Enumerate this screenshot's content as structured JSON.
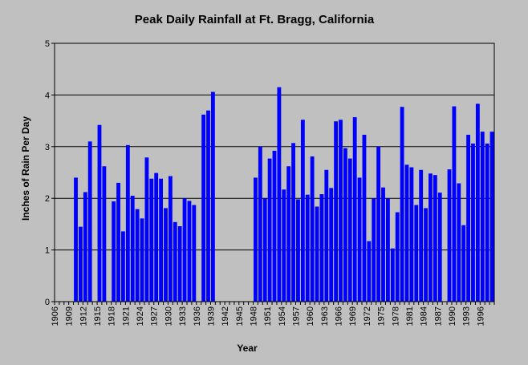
{
  "chart_data": {
    "type": "bar",
    "title": "Peak Daily Rainfall at Ft. Bragg, California",
    "xlabel": "Year",
    "ylabel": "Inches of Rain Per Day",
    "ylim": [
      0,
      5
    ],
    "yticks": [
      "0",
      "1",
      "2",
      "3",
      "4",
      "5"
    ],
    "xlim": [
      1906,
      1999
    ],
    "xticks": [
      "1906",
      "1909",
      "1912",
      "1915",
      "1918",
      "1921",
      "1924",
      "1927",
      "1930",
      "1933",
      "1936",
      "1939",
      "1942",
      "1945",
      "1948",
      "1951",
      "1954",
      "1957",
      "1960",
      "1963",
      "1966",
      "1969",
      "1972",
      "1975",
      "1978",
      "1981",
      "1984",
      "1987",
      "1990",
      "1993",
      "1996"
    ],
    "grid": "horizontal",
    "bar_color": "#0000ff",
    "background": "#ffffff",
    "x": [
      1910,
      1911,
      1912,
      1913,
      1914,
      1915,
      1916,
      1917,
      1918,
      1919,
      1920,
      1921,
      1922,
      1923,
      1924,
      1925,
      1926,
      1927,
      1928,
      1929,
      1930,
      1931,
      1932,
      1933,
      1934,
      1935,
      1936,
      1937,
      1938,
      1939,
      1940,
      1941,
      1942,
      1943,
      1944,
      1945,
      1946,
      1947,
      1948,
      1949,
      1950,
      1951,
      1952,
      1953,
      1954,
      1955,
      1956,
      1957,
      1958,
      1959,
      1960,
      1961,
      1962,
      1963,
      1964,
      1965,
      1966,
      1967,
      1968,
      1969,
      1970,
      1971,
      1972,
      1973,
      1974,
      1975,
      1976,
      1977,
      1978,
      1979,
      1980,
      1981,
      1982,
      1983,
      1984,
      1985,
      1986,
      1987,
      1988,
      1989,
      1990,
      1991,
      1992,
      1993,
      1994,
      1995,
      1996,
      1997,
      1998
    ],
    "values": [
      2.4,
      1.45,
      2.12,
      3.1,
      null,
      3.42,
      2.62,
      null,
      1.94,
      2.3,
      1.36,
      3.03,
      2.05,
      1.79,
      1.61,
      2.79,
      2.38,
      2.49,
      2.38,
      1.81,
      2.43,
      1.54,
      1.46,
      2.0,
      1.95,
      1.87,
      null,
      3.62,
      3.7,
      4.06,
      null,
      null,
      null,
      null,
      null,
      null,
      null,
      null,
      2.4,
      3.0,
      2.0,
      2.77,
      2.92,
      4.15,
      2.17,
      2.62,
      3.07,
      1.98,
      3.52,
      2.07,
      2.81,
      1.84,
      2.08,
      2.55,
      2.2,
      3.49,
      3.52,
      2.97,
      2.77,
      3.57,
      2.4,
      3.23,
      1.17,
      2.0,
      3.0,
      2.21,
      2.0,
      1.03,
      1.73,
      3.77,
      2.65,
      2.6,
      1.87,
      2.55,
      1.81,
      2.48,
      2.45,
      2.11,
      null,
      2.56,
      3.78,
      2.29,
      1.48,
      3.23,
      3.06,
      3.83,
      3.29,
      3.06,
      3.29
    ]
  }
}
